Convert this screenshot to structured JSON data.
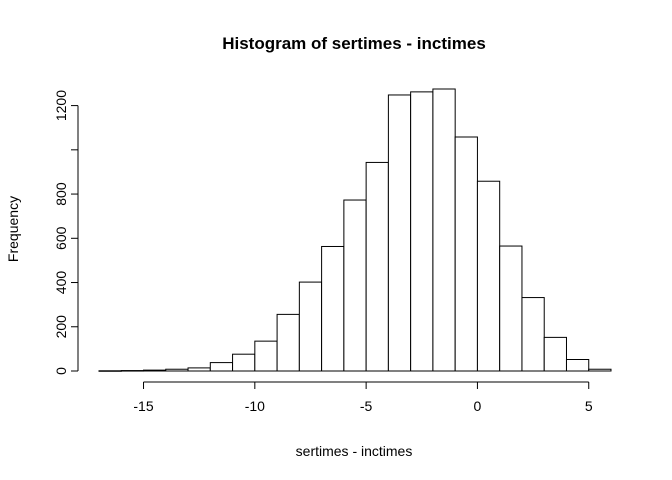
{
  "chart_data": {
    "type": "bar",
    "title": "Histogram of sertimes - inctimes",
    "xlabel": "sertimes - inctimes",
    "ylabel": "Frequency",
    "bin_width": 1,
    "bins": [
      {
        "x0": -17,
        "x1": -16,
        "count": 1
      },
      {
        "x0": -16,
        "x1": -15,
        "count": 2
      },
      {
        "x0": -15,
        "x1": -14,
        "count": 4
      },
      {
        "x0": -14,
        "x1": -13,
        "count": 8
      },
      {
        "x0": -13,
        "x1": -12,
        "count": 14
      },
      {
        "x0": -12,
        "x1": -11,
        "count": 38
      },
      {
        "x0": -11,
        "x1": -10,
        "count": 76
      },
      {
        "x0": -10,
        "x1": -9,
        "count": 135
      },
      {
        "x0": -9,
        "x1": -8,
        "count": 256
      },
      {
        "x0": -8,
        "x1": -7,
        "count": 402
      },
      {
        "x0": -7,
        "x1": -6,
        "count": 563
      },
      {
        "x0": -6,
        "x1": -5,
        "count": 773
      },
      {
        "x0": -5,
        "x1": -4,
        "count": 943
      },
      {
        "x0": -4,
        "x1": -3,
        "count": 1248
      },
      {
        "x0": -3,
        "x1": -2,
        "count": 1262
      },
      {
        "x0": -2,
        "x1": -1,
        "count": 1275
      },
      {
        "x0": -1,
        "x1": 0,
        "count": 1058
      },
      {
        "x0": 0,
        "x1": 1,
        "count": 858
      },
      {
        "x0": 1,
        "x1": 2,
        "count": 565
      },
      {
        "x0": 2,
        "x1": 3,
        "count": 332
      },
      {
        "x0": 3,
        "x1": 4,
        "count": 152
      },
      {
        "x0": 4,
        "x1": 5,
        "count": 52
      },
      {
        "x0": 5,
        "x1": 6,
        "count": 8
      }
    ],
    "xlim": [
      -17,
      6
    ],
    "ylim": [
      0,
      1275
    ],
    "x_ticks": [
      -15,
      -10,
      -5,
      0,
      5
    ],
    "x_tick_labels": [
      "-15",
      "-10",
      "-5",
      "0",
      "5"
    ],
    "y_ticks": [
      0,
      200,
      400,
      600,
      800,
      1000,
      1200
    ],
    "y_tick_labels": [
      "0",
      "200",
      "400",
      "600",
      "800",
      "",
      "1200"
    ],
    "grid": false,
    "legend": "none",
    "bar_fill": "#ffffff",
    "bar_stroke": "#000000"
  }
}
